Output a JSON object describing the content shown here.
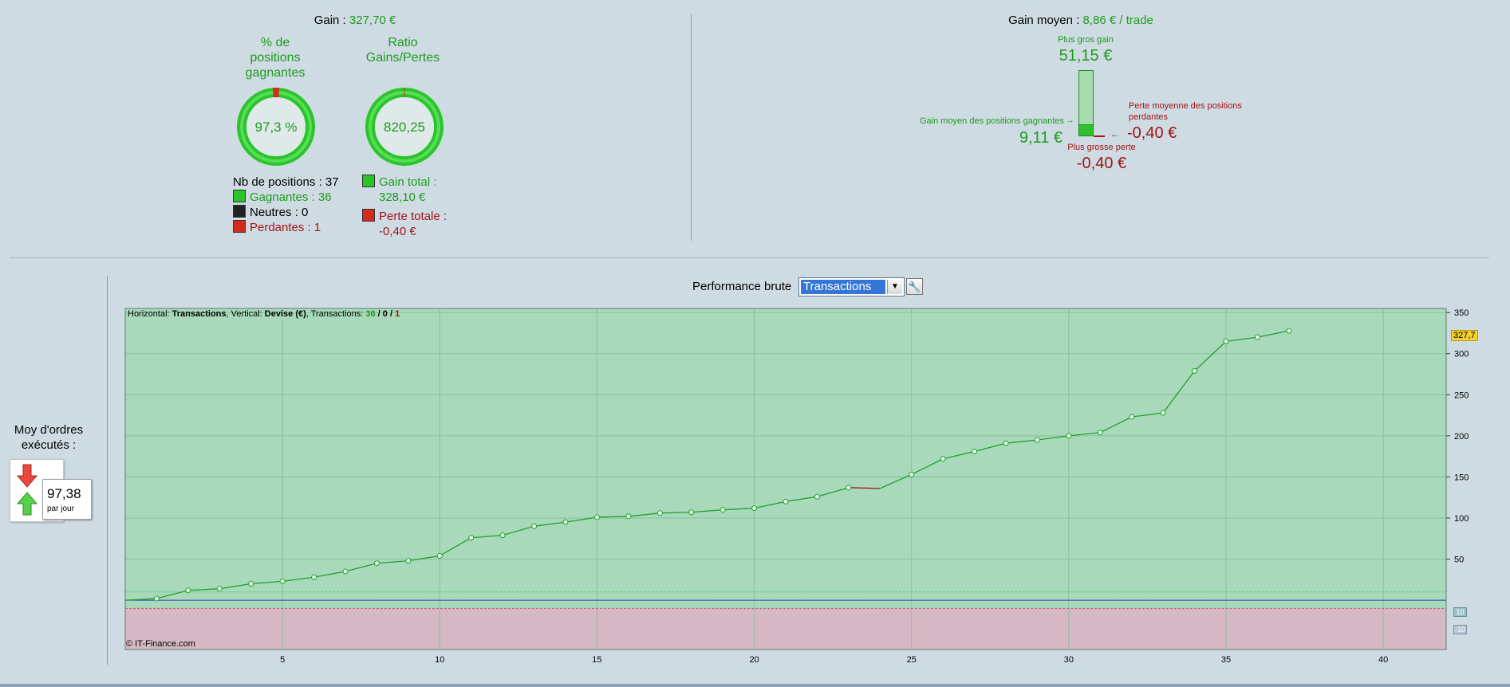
{
  "summary": {
    "gain_label": "Gain :",
    "gain_value": "327,70 €",
    "pct_label": "% de positions gagnantes",
    "pct_value": "97,3 %",
    "ratio_label": "Ratio Gains/Pertes",
    "ratio_value": "820,25",
    "nb_positions": "Nb de positions : 37",
    "gagnantes": "Gagnantes : 36",
    "neutres": "Neutres : 0",
    "perdantes": "Perdantes : 1",
    "gain_total_label": "Gain total :",
    "gain_total_value": "328,10 €",
    "perte_totale_label": "Perte totale :",
    "perte_totale_value": "-0,40 €",
    "win_fraction": 0.973
  },
  "average": {
    "label": "Gain moyen :",
    "value": "8,86 € / trade",
    "plus_gros_gain_label": "Plus gros gain",
    "plus_gros_gain_value": "51,15 €",
    "gain_moyen_gagnantes_label": "Gain moyen des positions gagnantes",
    "gain_moyen_gagnantes_value": "9,11 €",
    "perte_moyenne_label_1": "Perte moyenne des positions",
    "perte_moyenne_label_2": "perdantes",
    "perte_moyenne_value": "-0,40 €",
    "plus_grosse_perte_label": "Plus grosse perte",
    "plus_grosse_perte_value": "-0,40 €"
  },
  "orders": {
    "label_1": "Moy d'ordres",
    "label_2": "exécutés :",
    "value": "97,38",
    "unit": "par jour"
  },
  "toolbar": {
    "title": "Performance brute",
    "select_value": "Transactions"
  },
  "chart_header": {
    "h_label": "Horizontal: ",
    "h_value": "Transactions",
    "v_label": ", Vertical: ",
    "v_value": "Devise (€)",
    "t_label": ", Transactions: ",
    "t_win": "36",
    "t_sep1": " / ",
    "t_neutral": "0",
    "t_sep2": " / ",
    "t_loss": "1"
  },
  "copyright": "© IT-Finance.com",
  "last_value_tag": "327,7",
  "band_upper_tag": "10",
  "band_lower_tag": "-10",
  "colors": {
    "gain": "#1e9b1e",
    "loss": "#a31515",
    "chart_positive": "#a9d9bb",
    "chart_negative": "#d6b8c4",
    "line": "#1fa12a"
  },
  "chart_data": {
    "type": "line",
    "xlabel": "Transactions",
    "ylabel": "Devise (€)",
    "xlim": [
      0,
      42
    ],
    "ylim": [
      -60,
      355
    ],
    "xticks": [
      5,
      10,
      15,
      20,
      25,
      30,
      35,
      40
    ],
    "yticks": [
      50,
      100,
      150,
      200,
      250,
      300,
      350
    ],
    "band": [
      -10,
      10
    ],
    "x": [
      0,
      1,
      2,
      3,
      4,
      5,
      6,
      7,
      8,
      9,
      10,
      11,
      12,
      13,
      14,
      15,
      16,
      17,
      18,
      19,
      20,
      21,
      22,
      23,
      24,
      25,
      26,
      27,
      28,
      29,
      30,
      31,
      32,
      33,
      34,
      35,
      36,
      37
    ],
    "values": [
      0,
      2,
      12,
      14,
      20,
      23,
      28,
      35,
      45,
      48,
      54,
      76,
      79,
      90,
      95,
      101,
      102,
      106,
      107,
      110,
      112,
      120,
      126,
      137,
      136,
      153,
      172,
      181,
      191,
      195,
      200,
      204,
      223,
      228,
      279,
      315,
      320,
      327.7
    ],
    "losing_segment": [
      23,
      24
    ]
  }
}
